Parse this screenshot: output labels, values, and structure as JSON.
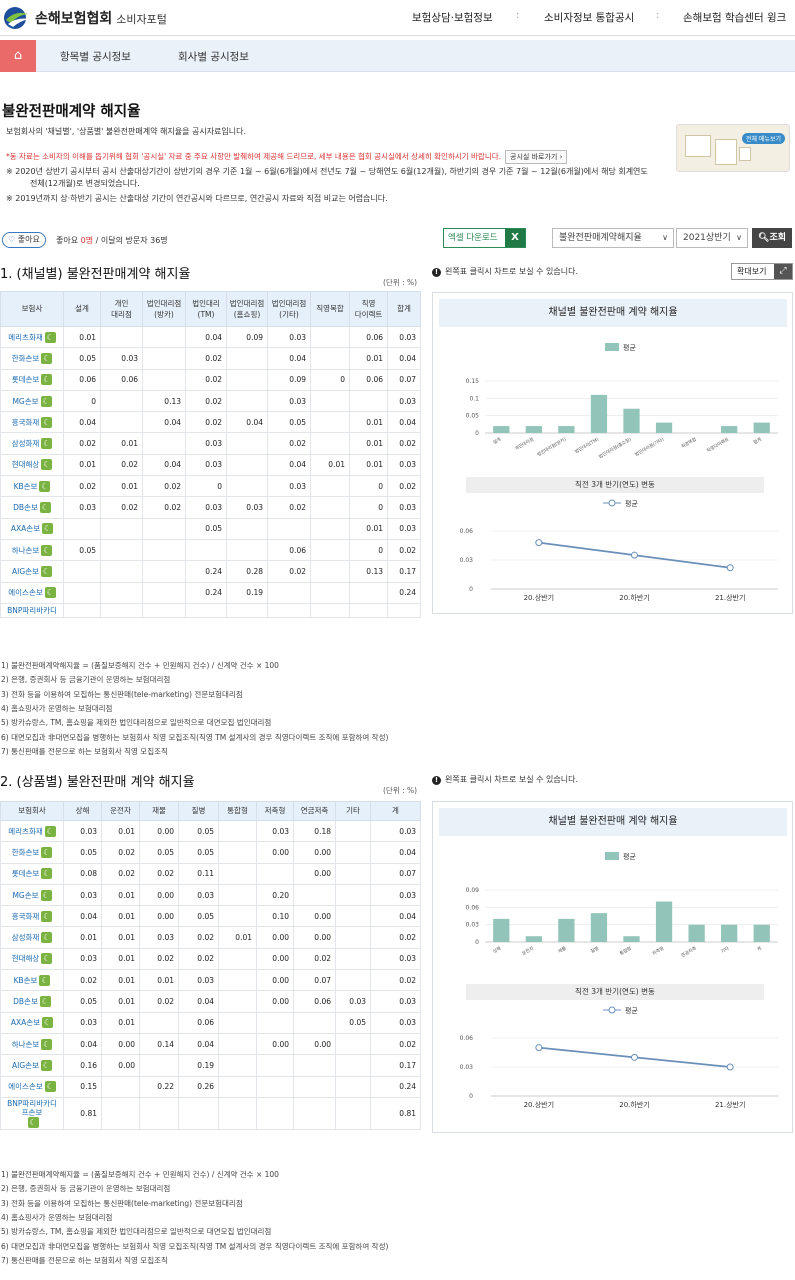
{
  "header": {
    "brand": "손해보험협회",
    "brand_sub": "소비자포털",
    "nav": [
      "보험상담·보험정보",
      "소비자정보 통합공시",
      "손해보험 학습센터 윙크"
    ],
    "sep": ":"
  },
  "subnav": {
    "home_icon": "home-icon",
    "tabs": [
      "항목별 공시정보",
      "회사별 공시정보"
    ]
  },
  "page": {
    "title": "불완전판매계약 해지율",
    "desc": "보험회사의 '채널별', '상품별' 불완전판매계약 해지율을 공시자료입니다.",
    "red_note": "*동 자료는 소비자의 이해를 돕기위해 협회 '공시실' 자료 중 주요 사항만 발췌하여 제공해 드리므로, 세부 내용은 협회 공시실에서 상세히 확인하시기 바랍니다.",
    "red_btn": "공시실 바로가기",
    "note1a": "※  2020년 상반기 공시부터 공시 산출대상기간이 상반기의 경우 기준 1월 ~ 6월(6개월)에서 전년도 7월 ~ 당해연도 6월(12개월), 하반기의 경우 기준 7월 ~ 12월(6개월)에서 해당 회계연도",
    "note1b": "전체(12개월)로 변경되었습니다.",
    "note2": "※  2019년까지 상·하반기 공시는 산출대상 기간이 연간공시와 다르므로, 연간공시 자료와 직접 비교는 어렵습니다.",
    "thumb_badge": "전체 메뉴보기"
  },
  "toolbar": {
    "like_label": "좋아요",
    "like_text_prefix": "좋아요 ",
    "like_count": "0명",
    "like_text_suffix": " / 이달의 방문자 36명",
    "excel_label": "엑셀 다운로드",
    "excel_icon": "excel-icon",
    "select1": "불완전판매계약해지율",
    "select2": "2021상반기",
    "search": "조회"
  },
  "section1": {
    "title": "1. (채널별) 불완전판매계약 해지율",
    "unit": "(단위 : %)",
    "tip": "왼쪽표 클릭시 차트로 보실 수 있습니다.",
    "zoom": "확대보기",
    "headers": [
      "보험사",
      "설계",
      "개인\n대리점",
      "법인대리점\n(방카)",
      "법인대리\n(TM)",
      "법인대리점\n(홈쇼핑)",
      "법인대리점\n(기타)",
      "직영복합",
      "직영\n다이렉트",
      "합계"
    ],
    "rows": [
      [
        "메리츠화재",
        "0.01",
        "",
        "",
        "0.04",
        "0.09",
        "0.03",
        "",
        "0.06",
        "0.03"
      ],
      [
        "한화손보",
        "0.05",
        "0.03",
        "",
        "0.02",
        "",
        "0.04",
        "",
        "0.01",
        "0.04"
      ],
      [
        "롯데손보",
        "0.06",
        "0.06",
        "",
        "0.02",
        "",
        "0.09",
        "0",
        "0.06",
        "0.07"
      ],
      [
        "MG손보",
        "0",
        "",
        "0.13",
        "0.02",
        "",
        "0.03",
        "",
        "",
        "0.03"
      ],
      [
        "흥국화재",
        "0.04",
        "",
        "0.04",
        "0.02",
        "0.04",
        "0.05",
        "",
        "0.01",
        "0.04"
      ],
      [
        "삼성화재",
        "0.02",
        "0.01",
        "",
        "0.03",
        "",
        "0.02",
        "",
        "0.01",
        "0.02"
      ],
      [
        "현대해상",
        "0.01",
        "0.02",
        "0.04",
        "0.03",
        "",
        "0.04",
        "0.01",
        "0.01",
        "0.03"
      ],
      [
        "KB손보",
        "0.02",
        "0.01",
        "0.02",
        "0",
        "",
        "0.03",
        "",
        "0",
        "0.02"
      ],
      [
        "DB손보",
        "0.03",
        "0.02",
        "0.02",
        "0.03",
        "0.03",
        "0.02",
        "",
        "0",
        "0.03"
      ],
      [
        "AXA손보",
        "",
        "",
        "",
        "0.05",
        "",
        "",
        "",
        "0.01",
        "0.03"
      ],
      [
        "하나손보",
        "0.05",
        "",
        "",
        "",
        "",
        "0.06",
        "",
        "0",
        "0.02"
      ],
      [
        "AIG손보",
        "",
        "",
        "",
        "0.24",
        "0.28",
        "0.02",
        "",
        "0.13",
        "0.17"
      ],
      [
        "에이스손보",
        "",
        "",
        "",
        "0.24",
        "0.19",
        "",
        "",
        "",
        "0.24"
      ],
      [
        "BNP파리바카디",
        "",
        "",
        "",
        "",
        "",
        "",
        "",
        "",
        ""
      ]
    ],
    "footnotes": [
      "1) 불완전판매계약해지율 = (품질보증해지 건수 + 민원해지 건수) / 신계약 건수 × 100",
      "2) 은행, 증권회사 등 금융기관이 운영하는 보험대리점",
      "3) 전화 등을 이용하여 모집하는 통신판매(tele-marketing) 전문보험대리점",
      "4) 홈쇼핑사가 운영하는 보험대리점",
      "5) 방카슈랑스, TM, 홈쇼핑을 제외한 법인대리점으로 일반적으로 대면모집 법인대리점",
      "6) 대면모집과 非대면모집을 병행하는 보험회사 직영 모집조직(직영 TM 설계사의 경우 직영다이렉트 조직에 포함하여 작성)",
      "7) 통신판매를 전문으로 하는 보험회사 직영 모집조직"
    ]
  },
  "section2": {
    "title": "2. (상품별) 불완전판매 계약 해지율",
    "unit": "(단위 : %)",
    "tip": "왼쪽표 클릭시 차트로 보실 수 있습니다.",
    "headers": [
      "보험회사",
      "상해",
      "운전자",
      "재물",
      "질병",
      "통합형",
      "저축형",
      "연금저축",
      "기타",
      "계"
    ],
    "rows": [
      [
        "메리츠화재",
        "0.03",
        "0.01",
        "0.00",
        "0.05",
        "",
        "0.03",
        "0.18",
        "",
        "0.03"
      ],
      [
        "한화손보",
        "0.05",
        "0.02",
        "0.05",
        "0.05",
        "",
        "0.00",
        "0.00",
        "",
        "0.04"
      ],
      [
        "롯데손보",
        "0.08",
        "0.02",
        "0.02",
        "0.11",
        "",
        "",
        "0.00",
        "",
        "0.07"
      ],
      [
        "MG손보",
        "0.03",
        "0.01",
        "0.00",
        "0.03",
        "",
        "0.20",
        "",
        "",
        "0.03"
      ],
      [
        "흥국화재",
        "0.04",
        "0.01",
        "0.00",
        "0.05",
        "",
        "0.10",
        "0.00",
        "",
        "0.04"
      ],
      [
        "삼성화재",
        "0.01",
        "0.01",
        "0.03",
        "0.02",
        "0.01",
        "0.00",
        "0.00",
        "",
        "0.02"
      ],
      [
        "현대해상",
        "0.03",
        "0.01",
        "0.02",
        "0.02",
        "",
        "0.00",
        "0.02",
        "",
        "0.03"
      ],
      [
        "KB손보",
        "0.02",
        "0.01",
        "0.01",
        "0.03",
        "",
        "0.00",
        "0.07",
        "",
        "0.02"
      ],
      [
        "DB손보",
        "0.05",
        "0.01",
        "0.02",
        "0.04",
        "",
        "0.00",
        "0.06",
        "0.03",
        "0.03"
      ],
      [
        "AXA손보",
        "0.03",
        "0.01",
        "",
        "0.06",
        "",
        "",
        "",
        "0.05",
        "0.03"
      ],
      [
        "하나손보",
        "0.04",
        "0.00",
        "0.14",
        "0.04",
        "",
        "0.00",
        "0.00",
        "",
        "0.02"
      ],
      [
        "AIG손보",
        "0.16",
        "0.00",
        "",
        "0.19",
        "",
        "",
        "",
        "",
        "0.17"
      ],
      [
        "에이스손보",
        "0.15",
        "",
        "0.22",
        "0.26",
        "",
        "",
        "",
        "",
        "0.24"
      ],
      [
        "BNP파리바카디\n프손보",
        "0.81",
        "",
        "",
        "",
        "",
        "",
        "",
        "",
        "0.81"
      ]
    ],
    "footnotes": [
      "1) 불완전판매계약해지율 = (품질보증해지 건수 + 민원해지 건수) / 신계약 건수 × 100",
      "2) 은행, 증권회사 등 금융기관이 운영하는 보험대리점",
      "3) 전화 등을 이용하여 모집하는 통신판매(tele-marketing) 전문보험대리점",
      "4) 홈쇼핑사가 운영하는 보험대리점",
      "5) 방카슈랑스, TM, 홈쇼핑을 제외한 법인대리점으로 일반적으로 대면모집 법인대리점",
      "6) 대면모집과 非대면모집을 병행하는 보험회사 직영 모집조직(직영 TM 설계사의 경우 직영다이렉트 조직에 포함하여 작성)",
      "7) 통신판매를 전문으로 하는 보험회사 직영 모집조직"
    ]
  },
  "chart_data": [
    {
      "type": "bar",
      "title": "채널별 불완전판매 계약 해지율",
      "legend": "평균",
      "categories": [
        "설계",
        "개인대리점",
        "법인대리점(방카)",
        "법인대리(TM)",
        "법인대리점(홈쇼핑)",
        "법인대리점(기타)",
        "직영복합",
        "직영다이렉트",
        "합계"
      ],
      "values": [
        0.02,
        0.02,
        0.02,
        0.11,
        0.07,
        0.03,
        0,
        0.02,
        0.03
      ],
      "ylim": [
        0,
        0.15
      ],
      "yticks": [
        "0",
        "0.05",
        "0.1",
        "0.15"
      ],
      "color": "#93c4b9"
    },
    {
      "type": "line",
      "title": "직전 3개 반기(연도) 변동",
      "legend": "평균",
      "categories": [
        "20.상반기",
        "20.하반기",
        "21.상반기"
      ],
      "values": [
        0.048,
        0.035,
        0.022
      ],
      "ylim": [
        0,
        0.06
      ],
      "yticks": [
        "0",
        "0.03",
        "0.06"
      ],
      "color": "#6a8fb8"
    },
    {
      "type": "bar",
      "title": "채널별 불완전판매 계약 해지율",
      "legend": "평균",
      "categories": [
        "상해",
        "운전자",
        "재물",
        "질병",
        "통합형",
        "저축형",
        "연금저축",
        "기타",
        "계"
      ],
      "values": [
        0.04,
        0.01,
        0.04,
        0.05,
        0.01,
        0.07,
        0.03,
        0.03,
        0.03
      ],
      "ylim": [
        0,
        0.09
      ],
      "yticks": [
        "0",
        "0.03",
        "0.06",
        "0.09"
      ],
      "color": "#93c4b9"
    },
    {
      "type": "line",
      "title": "직전 3개 반기(연도) 변동",
      "legend": "평균",
      "categories": [
        "20.상반기",
        "20.하반기",
        "21.상반기"
      ],
      "values": [
        0.05,
        0.04,
        0.03
      ],
      "ylim": [
        0,
        0.06
      ],
      "yticks": [
        "0",
        "0.03",
        "0.06"
      ],
      "color": "#6a8fb8"
    }
  ]
}
